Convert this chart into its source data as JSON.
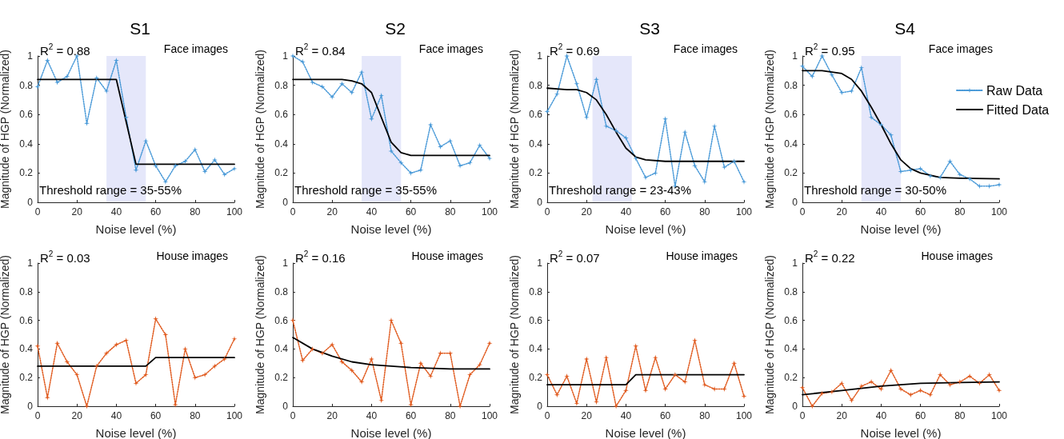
{
  "chart_data": [
    {
      "type": "line",
      "title": "S1",
      "xlabel": "Noise level (%)",
      "ylabel": "Magnitude of HGP (Normalized)",
      "xlim": [
        0,
        100
      ],
      "xticks": [
        0,
        20,
        40,
        60,
        80,
        100
      ],
      "ylim": [
        0,
        1
      ],
      "yticks": [
        0,
        0.2,
        0.4,
        0.6,
        0.8,
        1
      ],
      "grid": false,
      "x": [
        0,
        5,
        10,
        15,
        20,
        25,
        30,
        35,
        40,
        45,
        50,
        55,
        60,
        65,
        70,
        75,
        80,
        85,
        90,
        95,
        100
      ],
      "annotations": [
        "R$^{2}$ = 0.88",
        "Face images",
        "Threshold range = 35-55%"
      ],
      "bands": [
        {
          "axis": "x",
          "from": 35,
          "to": 55,
          "color": "#e5e7fa"
        }
      ],
      "series": [
        {
          "type": "line",
          "color": "#4a9ad8",
          "marker": "star",
          "line_style": "dotted",
          "values": [
            0.79,
            0.97,
            0.82,
            0.86,
            1.0,
            0.54,
            0.85,
            0.76,
            0.97,
            0.58,
            0.22,
            0.42,
            0.25,
            0.14,
            0.25,
            0.28,
            0.36,
            0.21,
            0.29,
            0.19,
            0.23
          ]
        },
        {
          "type": "line",
          "color": "#000000",
          "marker": "none",
          "line_style": "solid",
          "x": [
            0,
            40,
            50,
            100
          ],
          "values": [
            0.84,
            0.84,
            0.26,
            0.26
          ]
        }
      ]
    },
    {
      "type": "line",
      "title": "S2",
      "xlabel": "Noise level (%)",
      "ylabel": "Magnitude of HGP (Normalized)",
      "xlim": [
        0,
        100
      ],
      "xticks": [
        0,
        20,
        40,
        60,
        80,
        100
      ],
      "ylim": [
        0,
        1
      ],
      "yticks": [
        0,
        0.2,
        0.4,
        0.6,
        0.8,
        1
      ],
      "grid": false,
      "x": [
        0,
        5,
        10,
        15,
        20,
        25,
        30,
        35,
        40,
        45,
        50,
        55,
        60,
        65,
        70,
        75,
        80,
        85,
        90,
        95,
        100
      ],
      "annotations": [
        "R$^{2}$ = 0.84",
        "Face images",
        "Threshold range = 35-55%"
      ],
      "bands": [
        {
          "axis": "x",
          "from": 35,
          "to": 55,
          "color": "#e5e7fa"
        }
      ],
      "series": [
        {
          "type": "line",
          "color": "#4a9ad8",
          "marker": "star",
          "line_style": "dotted",
          "values": [
            1.0,
            0.96,
            0.82,
            0.79,
            0.72,
            0.81,
            0.75,
            0.89,
            0.57,
            0.73,
            0.35,
            0.27,
            0.2,
            0.22,
            0.53,
            0.38,
            0.42,
            0.25,
            0.27,
            0.39,
            0.3
          ]
        },
        {
          "type": "line",
          "color": "#000000",
          "marker": "none",
          "line_style": "solid",
          "x": [
            0,
            25,
            30,
            35,
            40,
            45,
            50,
            55,
            60,
            70,
            100
          ],
          "values": [
            0.84,
            0.84,
            0.83,
            0.81,
            0.75,
            0.58,
            0.41,
            0.34,
            0.32,
            0.32,
            0.32
          ]
        }
      ]
    },
    {
      "type": "line",
      "title": "S3",
      "xlabel": "Noise level (%)",
      "ylabel": "Magnitude of HGP (Normalized)",
      "xlim": [
        0,
        100
      ],
      "xticks": [
        0,
        20,
        40,
        60,
        80,
        100
      ],
      "ylim": [
        0,
        1
      ],
      "yticks": [
        0,
        0.2,
        0.4,
        0.6,
        0.8,
        1
      ],
      "grid": false,
      "x": [
        0,
        5,
        10,
        15,
        20,
        25,
        30,
        35,
        40,
        45,
        50,
        55,
        60,
        65,
        70,
        75,
        80,
        85,
        90,
        95,
        100
      ],
      "annotations": [
        "R$^{2}$ = 0.69",
        "Face images",
        "Threshold range = 23-43%"
      ],
      "bands": [
        {
          "axis": "x",
          "from": 23,
          "to": 43,
          "color": "#e5e7fa"
        }
      ],
      "series": [
        {
          "type": "line",
          "color": "#4a9ad8",
          "marker": "star",
          "line_style": "dotted",
          "values": [
            0.62,
            0.74,
            1.0,
            0.81,
            0.58,
            0.84,
            0.52,
            0.49,
            0.44,
            0.3,
            0.17,
            0.2,
            0.57,
            0.11,
            0.48,
            0.25,
            0.14,
            0.52,
            0.24,
            0.28,
            0.14
          ]
        },
        {
          "type": "line",
          "color": "#000000",
          "marker": "none",
          "line_style": "solid",
          "x": [
            0,
            10,
            15,
            20,
            25,
            30,
            35,
            40,
            45,
            50,
            60,
            100
          ],
          "values": [
            0.78,
            0.77,
            0.77,
            0.75,
            0.7,
            0.6,
            0.48,
            0.37,
            0.31,
            0.29,
            0.28,
            0.28
          ]
        }
      ]
    },
    {
      "type": "line",
      "title": "S4",
      "xlabel": "Noise level (%)",
      "ylabel": "Magnitude of HGP (Normalized)",
      "xlim": [
        0,
        100
      ],
      "xticks": [
        0,
        20,
        40,
        60,
        80,
        100
      ],
      "ylim": [
        0,
        1
      ],
      "yticks": [
        0,
        0.2,
        0.4,
        0.6,
        0.8,
        1
      ],
      "grid": false,
      "legend": "right",
      "x": [
        0,
        5,
        10,
        15,
        20,
        25,
        30,
        35,
        40,
        45,
        50,
        55,
        60,
        65,
        70,
        75,
        80,
        85,
        90,
        95,
        100
      ],
      "annotations": [
        "R$^{2}$ = 0.95",
        "Face images",
        "Threshold range = 30-50%"
      ],
      "bands": [
        {
          "axis": "x",
          "from": 30,
          "to": 50,
          "color": "#e5e7fa"
        }
      ],
      "series": [
        {
          "type": "line",
          "name": "Raw Data",
          "color": "#4a9ad8",
          "marker": "star",
          "line_style": "dotted",
          "values": [
            0.93,
            0.86,
            1.0,
            0.87,
            0.75,
            0.76,
            0.92,
            0.58,
            0.53,
            0.46,
            0.21,
            0.22,
            0.23,
            0.18,
            0.17,
            0.28,
            0.19,
            0.16,
            0.11,
            0.11,
            0.12
          ]
        },
        {
          "type": "line",
          "name": "Fitted Data",
          "color": "#000000",
          "marker": "none",
          "line_style": "solid",
          "x": [
            0,
            10,
            20,
            25,
            30,
            35,
            40,
            45,
            50,
            55,
            60,
            70,
            80,
            100
          ],
          "values": [
            0.9,
            0.9,
            0.88,
            0.84,
            0.76,
            0.65,
            0.53,
            0.4,
            0.29,
            0.23,
            0.2,
            0.17,
            0.165,
            0.16
          ]
        }
      ]
    },
    {
      "type": "line",
      "xlabel": "Noise level (%)",
      "ylabel": "Magnitude of HGP (Normalized)",
      "xlim": [
        0,
        100
      ],
      "xticks": [
        0,
        20,
        40,
        60,
        80,
        100
      ],
      "ylim": [
        0,
        1
      ],
      "yticks": [
        0,
        0.2,
        0.4,
        0.6,
        0.8,
        1
      ],
      "grid": false,
      "x": [
        0,
        5,
        10,
        15,
        20,
        25,
        30,
        35,
        40,
        45,
        50,
        55,
        60,
        65,
        70,
        75,
        80,
        85,
        90,
        95,
        100
      ],
      "annotations": [
        "R$^{2}$ = 0.03",
        "House images"
      ],
      "series": [
        {
          "type": "line",
          "color": "#e05a1e",
          "marker": "star",
          "line_style": "dotted",
          "values": [
            0.42,
            0.06,
            0.44,
            0.31,
            0.22,
            0,
            0.28,
            0.37,
            0.43,
            0.46,
            0.16,
            0.22,
            0.61,
            0.5,
            0.01,
            0.4,
            0.2,
            0.22,
            0.28,
            0.33,
            0.47
          ]
        },
        {
          "type": "line",
          "color": "#000000",
          "marker": "none",
          "line_style": "solid",
          "x": [
            0,
            55,
            60,
            100
          ],
          "values": [
            0.28,
            0.28,
            0.34,
            0.34
          ]
        }
      ]
    },
    {
      "type": "line",
      "xlabel": "Noise level (%)",
      "ylabel": "Magnitude of HGP (Normalized)",
      "xlim": [
        0,
        100
      ],
      "xticks": [
        0,
        20,
        40,
        60,
        80,
        100
      ],
      "ylim": [
        0,
        1
      ],
      "yticks": [
        0,
        0.2,
        0.4,
        0.6,
        0.8,
        1
      ],
      "grid": false,
      "x": [
        0,
        5,
        10,
        15,
        20,
        25,
        30,
        35,
        40,
        45,
        50,
        55,
        60,
        65,
        70,
        75,
        80,
        85,
        90,
        95,
        100
      ],
      "annotations": [
        "R$^{2}$ = 0.16",
        "House images"
      ],
      "series": [
        {
          "type": "line",
          "color": "#e05a1e",
          "marker": "star",
          "line_style": "dotted",
          "values": [
            0.6,
            0.32,
            0.4,
            0.37,
            0.43,
            0.31,
            0.25,
            0.17,
            0.33,
            0.04,
            0.6,
            0.44,
            0.01,
            0.3,
            0.21,
            0.37,
            0.37,
            0,
            0.22,
            0.29,
            0.44
          ]
        },
        {
          "type": "line",
          "color": "#000000",
          "marker": "none",
          "line_style": "solid",
          "x": [
            0,
            10,
            20,
            30,
            40,
            50,
            60,
            80,
            100
          ],
          "values": [
            0.48,
            0.4,
            0.35,
            0.31,
            0.29,
            0.28,
            0.27,
            0.26,
            0.26
          ]
        }
      ]
    },
    {
      "type": "line",
      "xlabel": "Noise level (%)",
      "ylabel": "Magnitude of HGP (Normalized)",
      "xlim": [
        0,
        100
      ],
      "xticks": [
        0,
        20,
        40,
        60,
        80,
        100
      ],
      "ylim": [
        0,
        1
      ],
      "yticks": [
        0,
        0.2,
        0.4,
        0.6,
        0.8,
        1
      ],
      "grid": false,
      "x": [
        0,
        5,
        10,
        15,
        20,
        25,
        30,
        35,
        40,
        45,
        50,
        55,
        60,
        65,
        70,
        75,
        80,
        85,
        90,
        95,
        100
      ],
      "annotations": [
        "R$^{2}$ = 0.07",
        "House images"
      ],
      "series": [
        {
          "type": "line",
          "color": "#e05a1e",
          "marker": "star",
          "line_style": "dotted",
          "values": [
            0.22,
            0.08,
            0.21,
            0.02,
            0.33,
            0.03,
            0.34,
            0,
            0.11,
            0.42,
            0.11,
            0.34,
            0.12,
            0.22,
            0.17,
            0.46,
            0.15,
            0.12,
            0.12,
            0.3,
            0.07
          ]
        },
        {
          "type": "line",
          "color": "#000000",
          "marker": "none",
          "line_style": "solid",
          "x": [
            0,
            40,
            45,
            100
          ],
          "values": [
            0.15,
            0.15,
            0.22,
            0.22
          ]
        }
      ]
    },
    {
      "type": "line",
      "xlabel": "Noise level (%)",
      "ylabel": "Magnitude of HGP (Normalized)",
      "xlim": [
        0,
        100
      ],
      "xticks": [
        0,
        20,
        40,
        60,
        80,
        100
      ],
      "ylim": [
        0,
        1
      ],
      "yticks": [
        0,
        0.2,
        0.4,
        0.6,
        0.8,
        1
      ],
      "grid": false,
      "x": [
        0,
        5,
        10,
        15,
        20,
        25,
        30,
        35,
        40,
        45,
        50,
        55,
        60,
        65,
        70,
        75,
        80,
        85,
        90,
        95,
        100
      ],
      "annotations": [
        "R$^{2}$ = 0.22",
        "House images"
      ],
      "series": [
        {
          "type": "line",
          "color": "#e05a1e",
          "marker": "star",
          "line_style": "dotted",
          "values": [
            0.13,
            0,
            0.09,
            0.1,
            0.16,
            0.04,
            0.14,
            0.17,
            0.12,
            0.25,
            0.12,
            0.08,
            0.11,
            0.08,
            0.22,
            0.15,
            0.17,
            0.21,
            0.16,
            0.22,
            0.11
          ]
        },
        {
          "type": "line",
          "color": "#000000",
          "marker": "none",
          "line_style": "solid",
          "x": [
            0,
            20,
            40,
            60,
            80,
            100
          ],
          "values": [
            0.08,
            0.11,
            0.14,
            0.16,
            0.165,
            0.17
          ]
        }
      ]
    }
  ]
}
